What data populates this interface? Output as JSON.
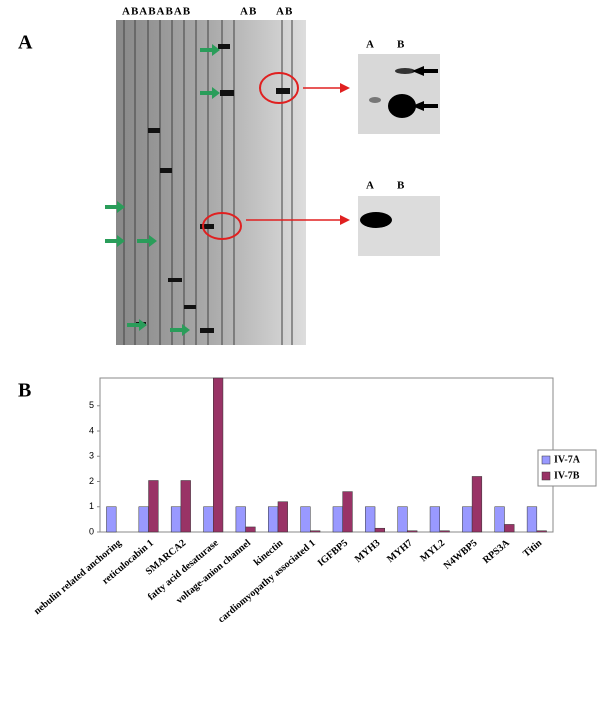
{
  "panel_a": {
    "label": "A",
    "lane_labels": [
      "ABABABAB",
      "AB",
      "AB"
    ],
    "inset_top": [
      "A",
      "B"
    ],
    "inset_bottom": [
      "A",
      "B"
    ]
  },
  "panel_b": {
    "label": "B"
  },
  "chart_data": {
    "type": "bar",
    "categories": [
      "nebulin related anchoring",
      "reticulocabin 1",
      "SMARCA2",
      "fatty acid desaturase",
      "voltage-anion channel",
      "kinectin",
      "cardiomyopathy associated 1",
      "IGFBP5",
      "MYH3",
      "MYH7",
      "MYL2",
      "N4WBP5",
      "RPS3A",
      "Titin"
    ],
    "series": [
      {
        "name": "IV-7A",
        "color": "#9999ff",
        "values": [
          1,
          1,
          1,
          1,
          1,
          1,
          1,
          1,
          1,
          1,
          1,
          1,
          1,
          1
        ]
      },
      {
        "name": "IV-7B",
        "color": "#993366",
        "values": [
          0,
          2.04,
          2.04,
          6.1,
          0.2,
          1.2,
          0.05,
          1.6,
          0.15,
          0.05,
          0.05,
          2.2,
          0.3,
          0.05
        ]
      }
    ],
    "ylim": [
      0,
      6.1
    ],
    "yticks": [
      0,
      1,
      2,
      3,
      4,
      5
    ],
    "grid": false,
    "legend": "right"
  }
}
